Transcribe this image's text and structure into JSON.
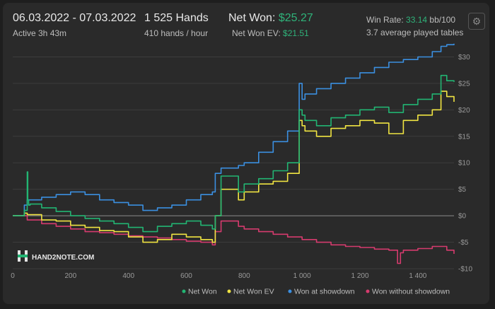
{
  "header": {
    "date_range": "06.03.2022 - 07.03.2022",
    "active": "Active 3h 43m",
    "hands": "1 525 Hands",
    "hands_per_hour": "410 hands / hour",
    "net_won_label": "Net Won:",
    "net_won_value": "$25.27",
    "net_won_ev_label": "Net Won  EV:",
    "net_won_ev_value": "$21.51",
    "win_rate_label": "Win Rate:",
    "win_rate_value": "33.14",
    "win_rate_unit": "bb/100",
    "tables": "3.7 average played tables",
    "settings_icon": "gear-icon"
  },
  "logo": {
    "text": "HAND2NOTE.COM",
    "icon": "h2n-logo-icon"
  },
  "colors": {
    "net_won": "#22b573",
    "net_won_ev": "#f0e442",
    "won_at_showdown": "#3b8fe0",
    "won_without_showdown": "#d63b6e",
    "grid": "#3c3c3c",
    "zero_line": "#8c8c8c"
  },
  "chart_data": {
    "type": "line",
    "title": "",
    "xlabel": "",
    "ylabel": "",
    "xlim": [
      0,
      1525
    ],
    "ylim": [
      -10,
      33
    ],
    "x_ticks": [
      0,
      200,
      400,
      600,
      800,
      1000,
      1200,
      1400
    ],
    "x_tick_labels": [
      "0",
      "200",
      "400",
      "600",
      "800",
      "1 000",
      "1 200",
      "1 400"
    ],
    "y_ticks": [
      30,
      25,
      20,
      15,
      10,
      5,
      0,
      -5,
      -10
    ],
    "y_tick_labels": [
      "$30",
      "$25",
      "$20",
      "$15",
      "$10",
      "$5",
      "$0",
      "-$5",
      "-$10"
    ],
    "grid": true,
    "legend_position": "bottom-right",
    "series": [
      {
        "name": "Net Won",
        "color_key": "net_won",
        "x": [
          0,
          40,
          50,
          52,
          55,
          60,
          100,
          150,
          200,
          250,
          300,
          350,
          400,
          450,
          500,
          550,
          600,
          650,
          690,
          700,
          720,
          780,
          800,
          850,
          900,
          950,
          990,
          1000,
          1010,
          1050,
          1100,
          1150,
          1200,
          1250,
          1300,
          1350,
          1400,
          1450,
          1480,
          1500,
          1525
        ],
        "values": [
          0,
          1.0,
          8.3,
          3.0,
          2.0,
          2.2,
          1.5,
          0.8,
          0.0,
          -0.5,
          -1.0,
          -1.5,
          -2.2,
          -3.0,
          -2.0,
          -1.5,
          -1.0,
          -1.8,
          -2.5,
          0.0,
          7.5,
          4.5,
          6.0,
          7.0,
          8.5,
          10.0,
          20.0,
          19.0,
          18.0,
          17.0,
          18.5,
          19.0,
          20.0,
          20.5,
          19.5,
          21.0,
          22.0,
          23.0,
          26.5,
          25.5,
          25.27
        ]
      },
      {
        "name": "Net Won  EV",
        "color_key": "net_won_ev",
        "x": [
          0,
          40,
          50,
          100,
          150,
          200,
          250,
          300,
          350,
          400,
          450,
          500,
          550,
          600,
          650,
          690,
          700,
          720,
          780,
          800,
          850,
          900,
          950,
          990,
          1000,
          1010,
          1050,
          1100,
          1150,
          1200,
          1250,
          1300,
          1350,
          1400,
          1450,
          1480,
          1500,
          1525
        ],
        "values": [
          0,
          0.5,
          0.2,
          -0.8,
          -1.0,
          -1.8,
          -2.2,
          -2.8,
          -3.0,
          -4.0,
          -5.0,
          -4.5,
          -3.5,
          -4.0,
          -4.5,
          -5.0,
          0.0,
          5.0,
          3.0,
          4.5,
          6.0,
          6.5,
          8.0,
          18.0,
          17.0,
          16.0,
          15.0,
          16.5,
          17.0,
          18.0,
          17.5,
          15.5,
          18.0,
          19.0,
          20.0,
          23.5,
          22.5,
          21.51
        ]
      },
      {
        "name": "Won at showdown",
        "color_key": "won_at_showdown",
        "x": [
          0,
          40,
          50,
          100,
          150,
          200,
          250,
          300,
          350,
          400,
          450,
          500,
          550,
          600,
          650,
          690,
          700,
          720,
          780,
          800,
          850,
          900,
          950,
          990,
          1000,
          1010,
          1050,
          1100,
          1150,
          1200,
          1250,
          1300,
          1350,
          1400,
          1450,
          1480,
          1500,
          1525
        ],
        "values": [
          0,
          2.0,
          3.0,
          3.5,
          4.0,
          4.5,
          4.0,
          3.0,
          2.5,
          2.0,
          1.0,
          1.5,
          2.0,
          3.0,
          4.0,
          4.5,
          8.0,
          9.0,
          9.5,
          10.0,
          12.0,
          14.0,
          16.0,
          25.0,
          22.0,
          23.0,
          24.0,
          25.0,
          26.0,
          27.0,
          28.0,
          29.0,
          29.5,
          30.0,
          31.0,
          32.0,
          32.3,
          32.5
        ]
      },
      {
        "name": "Won without showdown",
        "color_key": "won_without_showdown",
        "x": [
          0,
          50,
          100,
          150,
          200,
          250,
          300,
          350,
          400,
          450,
          500,
          550,
          600,
          650,
          690,
          700,
          720,
          780,
          800,
          850,
          900,
          950,
          1000,
          1050,
          1100,
          1150,
          1200,
          1250,
          1300,
          1330,
          1340,
          1350,
          1400,
          1450,
          1500,
          1525
        ],
        "values": [
          0,
          -0.8,
          -1.5,
          -2.0,
          -2.5,
          -3.0,
          -3.2,
          -3.5,
          -3.8,
          -4.0,
          -4.2,
          -4.5,
          -4.8,
          -5.0,
          -5.5,
          -3.0,
          -1.0,
          -2.0,
          -2.5,
          -3.0,
          -3.5,
          -4.0,
          -4.5,
          -5.0,
          -5.5,
          -5.8,
          -6.0,
          -6.3,
          -6.5,
          -9.0,
          -7.0,
          -6.5,
          -6.2,
          -5.8,
          -6.5,
          -7.2
        ]
      }
    ]
  },
  "legend": [
    {
      "label": "Net Won",
      "color_key": "net_won"
    },
    {
      "label": "Net Won  EV",
      "color_key": "net_won_ev"
    },
    {
      "label": "Won at showdown",
      "color_key": "won_at_showdown"
    },
    {
      "label": "Won without showdown",
      "color_key": "won_without_showdown"
    }
  ]
}
